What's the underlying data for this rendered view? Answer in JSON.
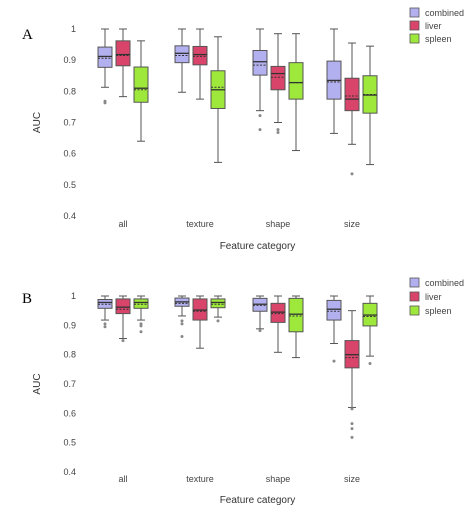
{
  "colors": {
    "combined": "#b3b0ef",
    "liver": "#d9456a",
    "spleen": "#9ee83c"
  },
  "chart_data": [
    {
      "type": "box",
      "panel_label": "A",
      "xlabel": "Feature category",
      "ylabel": "AUC",
      "ylim": [
        0.4,
        1.0
      ],
      "yticks": [
        0.4,
        0.5,
        0.6,
        0.7,
        0.8,
        0.9,
        1
      ],
      "ytick_labels": [
        "0.4",
        "0.5",
        "0.6",
        "0.7",
        "0.8",
        "0.9",
        "1"
      ],
      "grid": false,
      "legend_position": "top-right",
      "categories": [
        "all",
        "texture",
        "shape",
        "size"
      ],
      "series": [
        {
          "name": "combined",
          "boxes": [
            {
              "min": 0.813,
              "q1": 0.877,
              "median": 0.912,
              "mean": 0.906,
              "q3": 0.942,
              "max": 1.0,
              "outliers": [
                0.768,
                0.763
              ]
            },
            {
              "min": 0.797,
              "q1": 0.892,
              "median": 0.922,
              "mean": 0.915,
              "q3": 0.946,
              "max": 1.0,
              "outliers": []
            },
            {
              "min": 0.738,
              "q1": 0.852,
              "median": 0.895,
              "mean": 0.884,
              "q3": 0.931,
              "max": 1.0,
              "outliers": [
                0.722,
                0.677
              ]
            },
            {
              "min": 0.665,
              "q1": 0.775,
              "median": 0.835,
              "mean": 0.83,
              "q3": 0.897,
              "max": 1.0,
              "outliers": []
            }
          ]
        },
        {
          "name": "liver",
          "boxes": [
            {
              "min": 0.783,
              "q1": 0.882,
              "median": 0.918,
              "mean": 0.915,
              "q3": 0.962,
              "max": 1.0,
              "outliers": []
            },
            {
              "min": 0.775,
              "q1": 0.885,
              "median": 0.918,
              "mean": 0.912,
              "q3": 0.944,
              "max": 1.0,
              "outliers": []
            },
            {
              "min": 0.7,
              "q1": 0.805,
              "median": 0.857,
              "mean": 0.845,
              "q3": 0.88,
              "max": 0.985,
              "outliers": [
                0.677,
                0.668
              ]
            },
            {
              "min": 0.63,
              "q1": 0.738,
              "median": 0.775,
              "mean": 0.785,
              "q3": 0.842,
              "max": 0.955,
              "outliers": [
                0.535
              ]
            }
          ]
        },
        {
          "name": "spleen",
          "boxes": [
            {
              "min": 0.64,
              "q1": 0.765,
              "median": 0.81,
              "mean": 0.805,
              "q3": 0.878,
              "max": 0.962,
              "outliers": []
            },
            {
              "min": 0.572,
              "q1": 0.745,
              "median": 0.805,
              "mean": 0.813,
              "q3": 0.866,
              "max": 0.975,
              "outliers": []
            },
            {
              "min": 0.61,
              "q1": 0.775,
              "median": 0.828,
              "mean": 0.828,
              "q3": 0.892,
              "max": 0.985,
              "outliers": []
            },
            {
              "min": 0.565,
              "q1": 0.73,
              "median": 0.788,
              "mean": 0.79,
              "q3": 0.85,
              "max": 0.945,
              "outliers": []
            }
          ]
        }
      ]
    },
    {
      "type": "box",
      "panel_label": "B",
      "xlabel": "Feature category",
      "ylabel": "AUC",
      "ylim": [
        0.4,
        1.0
      ],
      "yticks": [
        0.4,
        0.5,
        0.6,
        0.7,
        0.8,
        0.9,
        1
      ],
      "ytick_labels": [
        "0.4",
        "0.5",
        "0.6",
        "0.7",
        "0.8",
        "0.9",
        "1"
      ],
      "grid": false,
      "legend_position": "top-right",
      "categories": [
        "all",
        "texture",
        "shape",
        "size"
      ],
      "series": [
        {
          "name": "combined",
          "boxes": [
            {
              "min": 0.918,
              "q1": 0.958,
              "median": 0.978,
              "mean": 0.972,
              "q3": 0.988,
              "max": 1.0,
              "outliers": [
                0.905,
                0.895
              ]
            },
            {
              "min": 0.932,
              "q1": 0.965,
              "median": 0.98,
              "mean": 0.975,
              "q3": 0.993,
              "max": 1.0,
              "outliers": [
                0.915,
                0.905,
                0.862
              ]
            },
            {
              "min": 0.888,
              "q1": 0.948,
              "median": 0.972,
              "mean": 0.968,
              "q3": 0.992,
              "max": 1.0,
              "outliers": [
                0.882
              ]
            },
            {
              "min": 0.838,
              "q1": 0.918,
              "median": 0.955,
              "mean": 0.948,
              "q3": 0.985,
              "max": 1.0,
              "outliers": [
                0.778
              ]
            }
          ]
        },
        {
          "name": "liver",
          "boxes": [
            {
              "min": 0.855,
              "q1": 0.94,
              "median": 0.962,
              "mean": 0.955,
              "q3": 0.99,
              "max": 1.0,
              "outliers": [
                0.848
              ]
            },
            {
              "min": 0.822,
              "q1": 0.918,
              "median": 0.952,
              "mean": 0.948,
              "q3": 0.99,
              "max": 1.0,
              "outliers": []
            },
            {
              "min": 0.808,
              "q1": 0.91,
              "median": 0.945,
              "mean": 0.94,
              "q3": 0.975,
              "max": 1.0,
              "outliers": []
            },
            {
              "min": 0.62,
              "q1": 0.755,
              "median": 0.8,
              "mean": 0.79,
              "q3": 0.848,
              "max": 0.95,
              "outliers": [
                0.615,
                0.565,
                0.548,
                0.518
              ]
            }
          ]
        },
        {
          "name": "spleen",
          "boxes": [
            {
              "min": 0.918,
              "q1": 0.958,
              "median": 0.978,
              "mean": 0.972,
              "q3": 0.99,
              "max": 1.0,
              "outliers": [
                0.905,
                0.898,
                0.878
              ]
            },
            {
              "min": 0.928,
              "q1": 0.96,
              "median": 0.978,
              "mean": 0.972,
              "q3": 0.99,
              "max": 1.0,
              "outliers": [
                0.915
              ]
            },
            {
              "min": 0.79,
              "q1": 0.878,
              "median": 0.938,
              "mean": 0.932,
              "q3": 0.992,
              "max": 1.0,
              "outliers": []
            },
            {
              "min": 0.795,
              "q1": 0.898,
              "median": 0.935,
              "mean": 0.93,
              "q3": 0.975,
              "max": 1.0,
              "outliers": [
                0.77
              ]
            }
          ]
        }
      ]
    }
  ]
}
